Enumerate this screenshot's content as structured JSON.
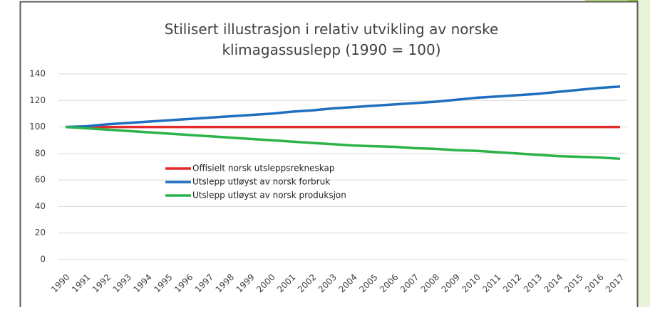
{
  "chart_data": {
    "type": "line",
    "title": "Stilisert illustrasjon i relativ utvikling av norske klimagassuslepp (1990 = 100)",
    "categories": [
      "1990",
      "1991",
      "1992",
      "1993",
      "1994",
      "1995",
      "1996",
      "1997",
      "1998",
      "1999",
      "2000",
      "2001",
      "2002",
      "2003",
      "2004",
      "2005",
      "2006",
      "2007",
      "2008",
      "2009",
      "2010",
      "2011",
      "2012",
      "2013",
      "2014",
      "2015",
      "2016",
      "2017"
    ],
    "series": [
      {
        "name": "Offisielt norsk utsleppsrekneskap",
        "color": "#e32b2b",
        "values": [
          100,
          100,
          100,
          100,
          100,
          100,
          100,
          100,
          100,
          100,
          100,
          100,
          100,
          100,
          100,
          100,
          100,
          100,
          100,
          100,
          100,
          100,
          100,
          100,
          100,
          100,
          100,
          100
        ]
      },
      {
        "name": "Utslepp utløyst av norsk forbruk",
        "color": "#1f6fc0",
        "values": [
          100,
          100.5,
          102,
          103,
          104,
          105,
          106,
          107,
          108,
          109,
          110,
          111.5,
          112.5,
          114,
          115,
          116,
          117,
          118,
          119,
          120.5,
          122,
          123,
          124,
          125,
          126.5,
          128,
          129.5,
          130.5
        ]
      },
      {
        "name": "Utslepp utløyst av norsk produksjon",
        "color": "#2cb34a",
        "values": [
          100,
          99,
          98,
          97,
          96,
          95,
          94,
          93,
          92,
          91,
          90,
          89,
          88,
          87,
          86,
          85.5,
          85,
          84,
          83.5,
          82.5,
          82,
          81,
          80,
          79,
          78,
          77.5,
          77,
          76
        ]
      }
    ],
    "ylim": [
      0,
      140
    ],
    "yticks": [
      0,
      20,
      40,
      60,
      80,
      100,
      120,
      140
    ],
    "grid": true
  }
}
